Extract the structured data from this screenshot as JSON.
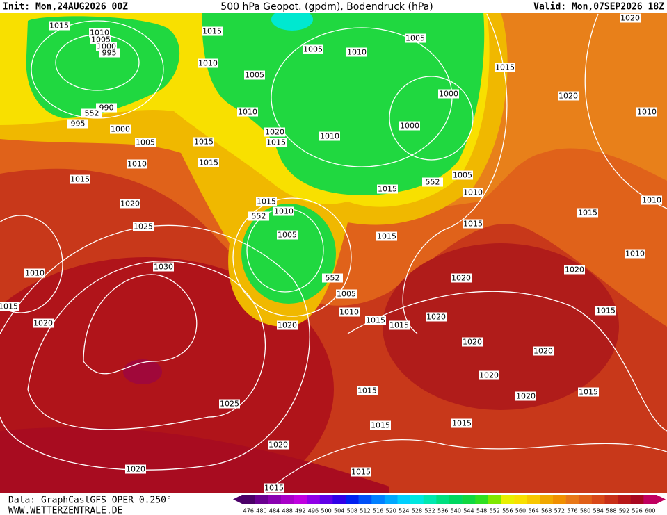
{
  "header": {
    "init": "Init: Mon,24AUG2026 00Z",
    "title": "500 hPa Geopot. (gpdm), Bodendruck (hPa)",
    "valid": "Valid: Mon,07SEP2026 18Z"
  },
  "footer": {
    "source": "Data: GraphCastGFS OPER 0.250°",
    "site": "WWW.WETTERZENTRALE.DE"
  },
  "colorbar": {
    "levels": [
      476,
      480,
      484,
      488,
      492,
      496,
      500,
      504,
      508,
      512,
      516,
      520,
      524,
      528,
      532,
      536,
      540,
      544,
      548,
      552,
      556,
      560,
      564,
      568,
      572,
      576,
      580,
      584,
      588,
      592,
      596,
      600
    ],
    "colors": [
      "#4b0068",
      "#6a0090",
      "#8a00b0",
      "#a800c8",
      "#c000e0",
      "#9000e8",
      "#6000e8",
      "#3000e8",
      "#0020f0",
      "#0050f8",
      "#0080ff",
      "#00a8ff",
      "#00d0ff",
      "#00e8e0",
      "#00e8b0",
      "#00e080",
      "#00d860",
      "#10d840",
      "#30e020",
      "#80e800",
      "#e8f000",
      "#f8e000",
      "#f8c800",
      "#f0a800",
      "#f09000",
      "#e87818",
      "#e06018",
      "#d84818",
      "#c83018",
      "#b81818",
      "#a80820",
      "#c00060"
    ]
  },
  "isobar_labels": [
    1015,
    1010,
    1005,
    1000,
    995,
    990,
    552,
    995,
    1000,
    1005,
    1010,
    1015,
    1020,
    1025,
    1030,
    1010,
    1020,
    1025,
    1020,
    1020,
    1015,
    1015,
    1010,
    1005,
    1005,
    1010,
    1005,
    1015,
    1020,
    1020,
    1010,
    1000,
    1000,
    1010,
    1020,
    1015,
    1015,
    1015,
    1005,
    1010,
    1015,
    1015,
    1010,
    552,
    1005,
    552,
    1005,
    1010,
    1015,
    1015,
    1020,
    1015,
    1015,
    1015,
    1010,
    1010,
    1020,
    1020,
    1020,
    1020,
    1015,
    1020,
    1020,
    1020,
    1015,
    1015,
    1015,
    1015,
    1015,
    1015,
    552,
    1010
  ]
}
